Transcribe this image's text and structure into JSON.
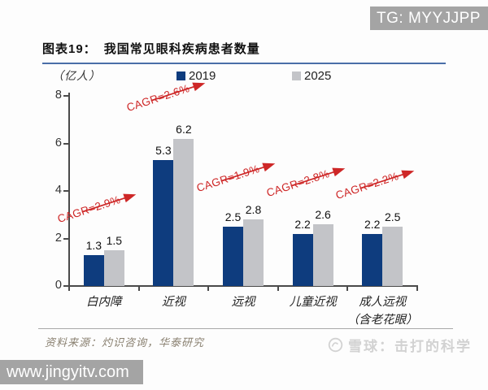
{
  "badges": {
    "telegram_label": "TG: MYYJJPP",
    "site_label": "www.jingyitv.com",
    "badge_bg": "#a4a4a4"
  },
  "header": {
    "title_prefix": "图表19：",
    "title_text": "我国常见眼科疾病患者数量",
    "underline_color": "#4a6ea8"
  },
  "chart_data": {
    "type": "bar",
    "title": "我国常见眼科疾病患者数量",
    "unit_label": "（亿人）",
    "categories": [
      "白内障",
      "近视",
      "远视",
      "儿童近视",
      "成人远视\n（含老花眼）"
    ],
    "series": [
      {
        "name": "2019",
        "color": "#0e3c7e",
        "values": [
          1.3,
          5.3,
          2.5,
          2.2,
          2.2
        ]
      },
      {
        "name": "2025",
        "color": "#c3c4c8",
        "values": [
          1.5,
          6.2,
          2.8,
          2.6,
          2.5
        ]
      }
    ],
    "annotations": [
      {
        "label": "CAGR=2.9%"
      },
      {
        "label": "CAGR=2.6%"
      },
      {
        "label": "CAGR=1.9%"
      },
      {
        "label": "CAGR=2.8%"
      },
      {
        "label": "CAGR=2.2%"
      }
    ],
    "annotation_color": "#ce2727",
    "ylim": [
      0,
      8
    ],
    "yticks": [
      0,
      2,
      4,
      6,
      8
    ],
    "axis_color": "#4a4a4a",
    "legend_position": "top",
    "grid": false
  },
  "footer": {
    "source_text": "资料来源：灼识咨询，华泰研究",
    "watermark_text": "雪球：击打的科学"
  }
}
